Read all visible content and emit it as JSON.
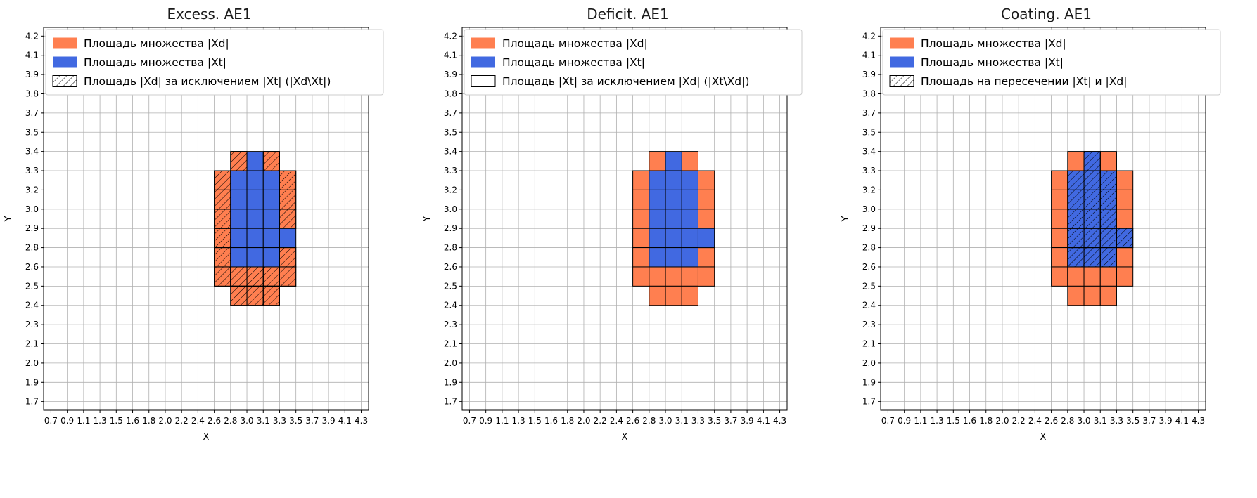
{
  "colors": {
    "xd": "#ff7f50",
    "xt": "#4169e1",
    "grid": "#b0b0b0",
    "cell_edge": "#000000",
    "axis": "#000000",
    "legend_border": "#cccccc",
    "title": "#1a1a1a"
  },
  "panels": [
    {
      "title": "Excess. AE1",
      "legend": [
        {
          "swatch": "xd",
          "label": "Площадь множества |Xd|"
        },
        {
          "swatch": "xt",
          "label": "Площадь множества  |Xt|"
        },
        {
          "swatch": "hatch",
          "label": "Площадь |Xd| за исключением |Xt| (|Xd\\Xt|)"
        }
      ]
    },
    {
      "title": "Deficit. AE1",
      "legend": [
        {
          "swatch": "xd",
          "label": "Площадь множества |Xd|"
        },
        {
          "swatch": "xt",
          "label": "Площадь множества  |Xt|"
        },
        {
          "swatch": "empty",
          "label": "Площадь |Xt| за исключением |Xd| (|Xt\\Xd|)"
        }
      ]
    },
    {
      "title": "Coating. AE1",
      "legend": [
        {
          "swatch": "xd",
          "label": "Площадь множества |Xd|"
        },
        {
          "swatch": "xt",
          "label": "Площадь множества  |Xt|"
        },
        {
          "swatch": "hatch",
          "label": "Площадь на пересечении |Xt| и |Xd|"
        }
      ]
    }
  ],
  "chart_data": {
    "type": "heatmap",
    "xlabel": "X",
    "ylabel": "Y",
    "grid": true,
    "x_ticks": [
      "0.7",
      "0.9",
      "1.1",
      "1.3",
      "1.5",
      "1.6",
      "1.8",
      "2.0",
      "2.2",
      "2.4",
      "2.6",
      "2.8",
      "3.0",
      "3.1",
      "3.3",
      "3.5",
      "3.7",
      "3.9",
      "4.1",
      "4.3"
    ],
    "y_ticks": [
      "1.7",
      "1.9",
      "2.0",
      "2.1",
      "2.3",
      "2.4",
      "2.5",
      "2.6",
      "2.8",
      "2.9",
      "3.0",
      "3.2",
      "3.3",
      "3.4",
      "3.5",
      "3.7",
      "3.8",
      "3.9",
      "4.1",
      "4.2"
    ],
    "cells_note": "cells are [col,row] grid-interval indices; col c spans x_ticks[c]..x_ticks[c+1]; row r spans y_ticks[r]..y_ticks[r+1], r=0 at bottom",
    "xd_only_cells": [
      [
        11,
        12
      ],
      [
        13,
        12
      ],
      [
        10,
        11
      ],
      [
        14,
        11
      ],
      [
        10,
        10
      ],
      [
        14,
        10
      ],
      [
        10,
        9
      ],
      [
        14,
        9
      ],
      [
        10,
        8
      ],
      [
        10,
        7
      ],
      [
        14,
        7
      ],
      [
        10,
        6
      ],
      [
        11,
        6
      ],
      [
        12,
        6
      ],
      [
        13,
        6
      ],
      [
        14,
        6
      ],
      [
        11,
        5
      ],
      [
        12,
        5
      ],
      [
        13,
        5
      ]
    ],
    "xt_cells": [
      [
        12,
        12
      ],
      [
        11,
        11
      ],
      [
        12,
        11
      ],
      [
        13,
        11
      ],
      [
        11,
        10
      ],
      [
        12,
        10
      ],
      [
        13,
        10
      ],
      [
        11,
        9
      ],
      [
        12,
        9
      ],
      [
        13,
        9
      ],
      [
        11,
        8
      ],
      [
        12,
        8
      ],
      [
        13,
        8
      ],
      [
        14,
        8
      ],
      [
        11,
        7
      ],
      [
        12,
        7
      ],
      [
        13,
        7
      ]
    ],
    "hatch_targets": [
      "xd_only",
      "none",
      "xt"
    ]
  }
}
